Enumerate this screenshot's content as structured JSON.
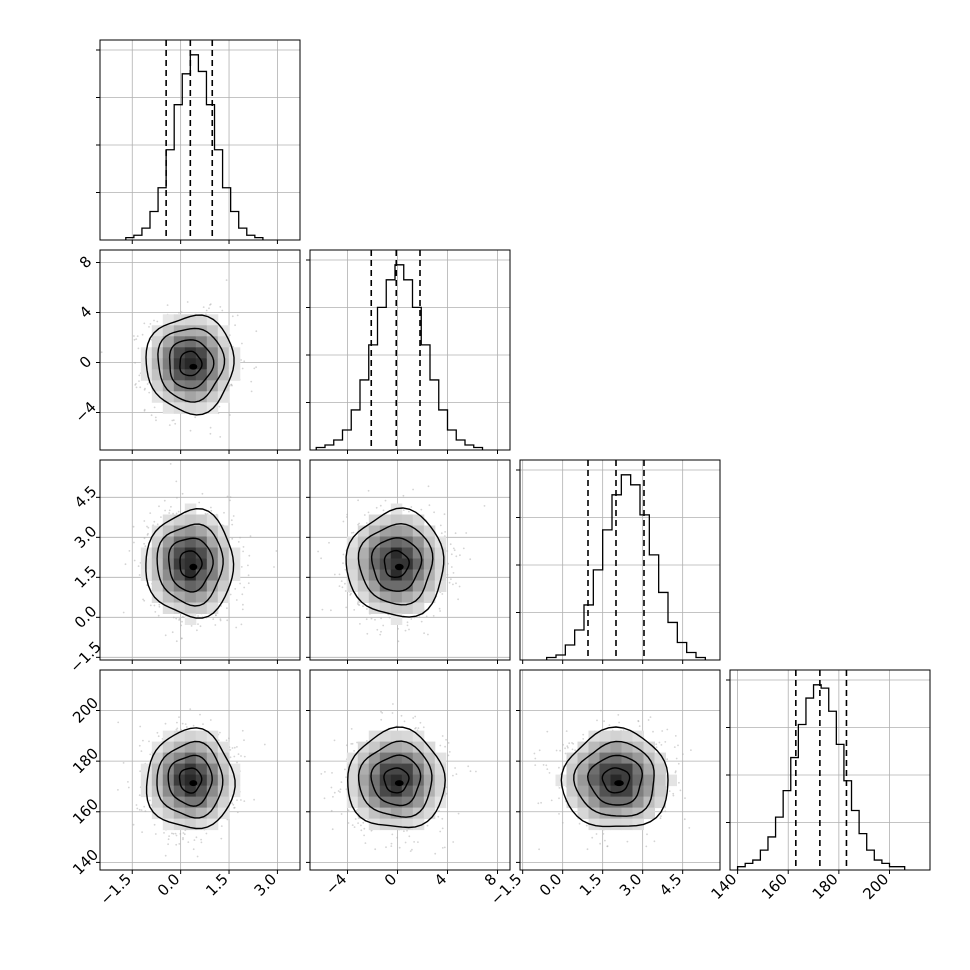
{
  "chart_data": {
    "type": "corner",
    "n_params": 4,
    "params": [
      {
        "range": [
          -2.5,
          3.7
        ],
        "ticks": [
          -1.5,
          0.0,
          1.5,
          3.0
        ],
        "tick_labels": [
          "−1.5",
          "0.0",
          "1.5",
          "3.0"
        ],
        "quantiles": [
          -0.45,
          0.3,
          0.98
        ],
        "mean": 0.3,
        "sd": 0.68
      },
      {
        "range": [
          -7.0,
          9.0
        ],
        "ticks": [
          -4,
          0,
          4,
          8
        ],
        "tick_labels": [
          "−4",
          "0",
          "4",
          "8"
        ],
        "quantiles": [
          -2.1,
          -0.1,
          1.8
        ],
        "mean": -0.1,
        "sd": 1.95
      },
      {
        "range": [
          -1.6,
          5.9
        ],
        "ticks": [
          -1.5,
          0.0,
          1.5,
          3.0,
          4.5
        ],
        "tick_labels": [
          "−1.5",
          "0.0",
          "1.5",
          "3.0",
          "4.5"
        ],
        "quantiles": [
          0.95,
          2.0,
          3.05
        ],
        "mean": 2.0,
        "sd": 1.0
      },
      {
        "range": [
          137,
          216
        ],
        "ticks": [
          140,
          160,
          180,
          200
        ],
        "tick_labels": [
          "140",
          "160",
          "180",
          "200"
        ],
        "quantiles": [
          163,
          172.5,
          183
        ],
        "mean": 172.5,
        "sd": 9.8
      }
    ],
    "histograms": [
      {
        "param": 0,
        "bin_edges": [
          -1.7,
          -1.45,
          -1.2,
          -0.95,
          -0.7,
          -0.45,
          -0.2,
          0.05,
          0.3,
          0.55,
          0.8,
          1.05,
          1.3,
          1.55,
          1.8,
          2.05,
          2.3,
          2.55
        ],
        "counts": [
          1,
          2,
          5,
          12,
          22,
          38,
          57,
          70,
          78,
          71,
          57,
          38,
          22,
          12,
          5,
          2,
          1
        ]
      },
      {
        "param": 1,
        "bin_edges": [
          -6.5,
          -5.8,
          -5.1,
          -4.4,
          -3.7,
          -3.0,
          -2.3,
          -1.6,
          -0.9,
          -0.2,
          0.5,
          1.2,
          1.9,
          2.6,
          3.3,
          4.0,
          4.7,
          5.4,
          6.1,
          6.8
        ],
        "counts": [
          1,
          2,
          4,
          8,
          16,
          28,
          42,
          57,
          68,
          74,
          68,
          57,
          42,
          28,
          16,
          8,
          4,
          2,
          1
        ]
      },
      {
        "param": 2,
        "bin_edges": [
          -0.6,
          -0.25,
          0.1,
          0.45,
          0.8,
          1.15,
          1.5,
          1.85,
          2.2,
          2.55,
          2.9,
          3.25,
          3.6,
          3.95,
          4.3,
          4.65,
          5.0,
          5.35
        ],
        "counts": [
          1,
          2,
          6,
          12,
          22,
          36,
          52,
          66,
          74,
          70,
          58,
          42,
          27,
          15,
          7,
          3,
          1
        ]
      },
      {
        "param": 3,
        "bin_edges": [
          140,
          143,
          146,
          149,
          152,
          155,
          158,
          161,
          164,
          167,
          170,
          173,
          176,
          179,
          182,
          185,
          188,
          191,
          194,
          197,
          200,
          203,
          206
        ],
        "counts": [
          1,
          2,
          3,
          6,
          10,
          16,
          24,
          34,
          44,
          52,
          56,
          55,
          48,
          38,
          27,
          18,
          11,
          6,
          3,
          2,
          1,
          1
        ]
      }
    ],
    "contour_levels": [
      "0.5 sigma",
      "1 sigma",
      "1.5 sigma",
      "2 sigma"
    ],
    "colors": {
      "hist": "#000000",
      "quantile_line": "#000000",
      "scatter": "#b0b0b0",
      "grid": "#b0b0b0",
      "contour": "#000000"
    },
    "grid": true,
    "axis_labels": []
  }
}
